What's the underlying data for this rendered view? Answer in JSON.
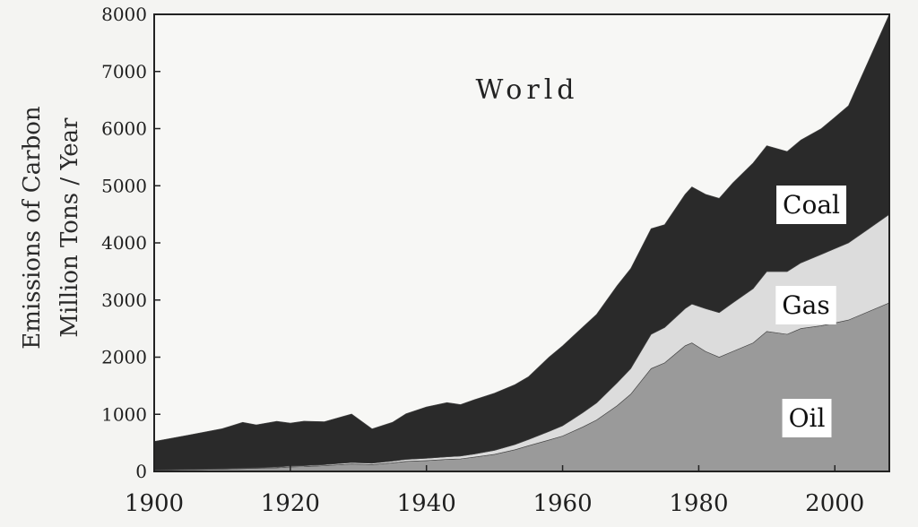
{
  "chart_data": {
    "type": "area",
    "stacked": true,
    "title": "World",
    "ylabel_line1": "Emissions of Carbon",
    "ylabel_line2": "Million Tons / Year",
    "xlabel": "",
    "xlim": [
      1900,
      2008
    ],
    "ylim": [
      0,
      8000
    ],
    "x_ticks": [
      1900,
      1920,
      1940,
      1960,
      1980,
      2000
    ],
    "y_ticks": [
      0,
      1000,
      2000,
      3000,
      4000,
      5000,
      6000,
      7000,
      8000
    ],
    "grid": false,
    "legend": "labels inside areas",
    "x": [
      1900,
      1905,
      1910,
      1913,
      1915,
      1918,
      1920,
      1922,
      1925,
      1929,
      1932,
      1935,
      1937,
      1940,
      1943,
      1945,
      1947,
      1950,
      1953,
      1955,
      1958,
      1960,
      1963,
      1965,
      1968,
      1970,
      1973,
      1975,
      1978,
      1979,
      1981,
      1983,
      1985,
      1988,
      1990,
      1993,
      1995,
      1998,
      2000,
      2002,
      2005,
      2008
    ],
    "series": [
      {
        "name": "Oil",
        "color": "#9a9a9a",
        "values": [
          20,
          30,
          40,
          50,
          55,
          65,
          80,
          85,
          100,
          130,
          120,
          150,
          175,
          190,
          210,
          220,
          250,
          300,
          380,
          450,
          550,
          620,
          780,
          900,
          1150,
          1350,
          1800,
          1900,
          2200,
          2250,
          2100,
          2000,
          2100,
          2250,
          2450,
          2400,
          2500,
          2550,
          2600,
          2650,
          2800,
          2950
        ]
      },
      {
        "name": "Gas",
        "color": "#dcdcdc",
        "values": [
          5,
          6,
          8,
          10,
          10,
          12,
          15,
          15,
          20,
          25,
          25,
          30,
          35,
          40,
          45,
          50,
          55,
          70,
          90,
          110,
          150,
          180,
          250,
          300,
          400,
          450,
          600,
          620,
          650,
          680,
          750,
          780,
          850,
          950,
          1050,
          1100,
          1150,
          1250,
          1300,
          1350,
          1450,
          1550
        ]
      },
      {
        "name": "Coal",
        "color": "#2a2a2a",
        "values": [
          500,
          600,
          700,
          800,
          750,
          800,
          750,
          780,
          750,
          850,
          600,
          680,
          800,
          900,
          950,
          900,
          950,
          1000,
          1050,
          1100,
          1300,
          1400,
          1500,
          1550,
          1700,
          1750,
          1850,
          1800,
          2000,
          2050,
          2000,
          2000,
          2100,
          2200,
          2200,
          2100,
          2150,
          2200,
          2300,
          2400,
          2950,
          3500
        ]
      }
    ]
  }
}
